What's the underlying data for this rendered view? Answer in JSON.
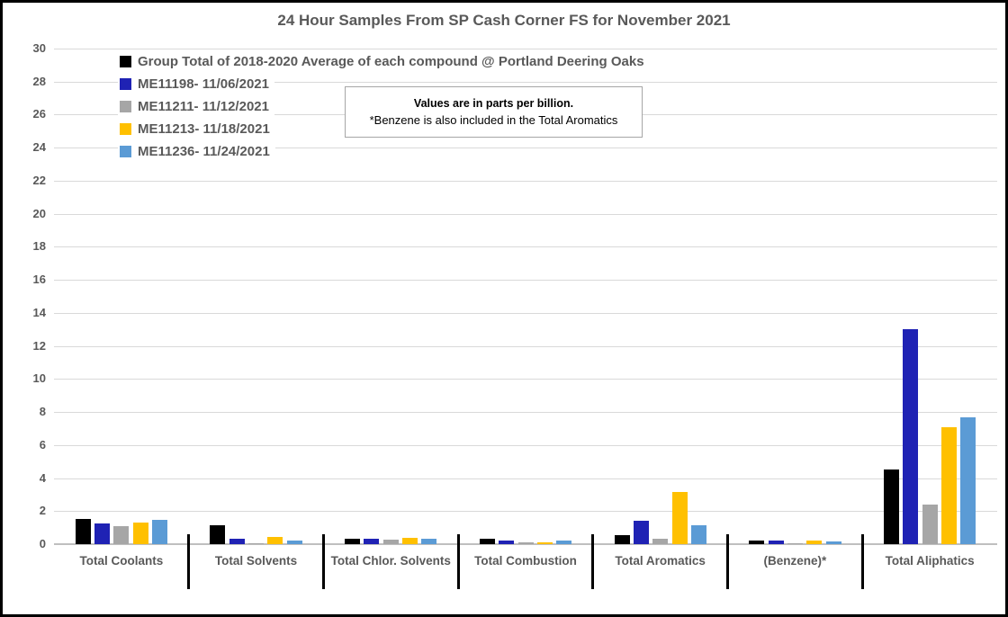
{
  "title": "24 Hour Samples From SP Cash Corner FS for November 2021",
  "annotation": {
    "line1": "Values are in parts per billion.",
    "line2": "*Benzene is also included in the Total Aromatics"
  },
  "colors": {
    "title_text": "#595959",
    "gridline": "#d9d9d9",
    "axis_line": "#bfbfbf",
    "separator": "#000000",
    "annotation_border": "#a6a6a6"
  },
  "chart_data": {
    "type": "bar",
    "title": "24 Hour Samples From SP Cash Corner FS for November 2021",
    "categories": [
      "Total Coolants",
      "Total Solvents",
      "Total Chlor. Solvents",
      "Total Combustion",
      "Total Aromatics",
      "(Benzene)*",
      "Total Aliphatics"
    ],
    "series": [
      {
        "name": "Group Total of 2018-2020 Average of each compound @ Portland Deering Oaks",
        "color": "#000000",
        "values": [
          1.5,
          1.15,
          0.35,
          0.3,
          0.55,
          0.2,
          4.5
        ]
      },
      {
        "name": "ME11198- 11/06/2021",
        "color": "#1f22b4",
        "values": [
          1.25,
          0.3,
          0.3,
          0.2,
          1.4,
          0.2,
          13.0
        ]
      },
      {
        "name": "ME11211- 11/12/2021",
        "color": "#a6a6a6",
        "values": [
          1.1,
          0.05,
          0.25,
          0.1,
          0.35,
          0.05,
          2.4
        ]
      },
      {
        "name": "ME11213- 11/18/2021",
        "color": "#ffc000",
        "values": [
          1.3,
          0.45,
          0.4,
          0.1,
          3.15,
          0.2,
          7.1
        ]
      },
      {
        "name": "ME11236- 11/24/2021",
        "color": "#5b9bd5",
        "values": [
          1.45,
          0.2,
          0.3,
          0.2,
          1.15,
          0.15,
          7.7
        ]
      }
    ],
    "xlabel": "",
    "ylabel": "",
    "ylim": [
      0,
      30
    ],
    "ytick_step": 2,
    "grid": "horizontal",
    "legend_position": "top-left-inside",
    "units_note": "parts per billion"
  }
}
